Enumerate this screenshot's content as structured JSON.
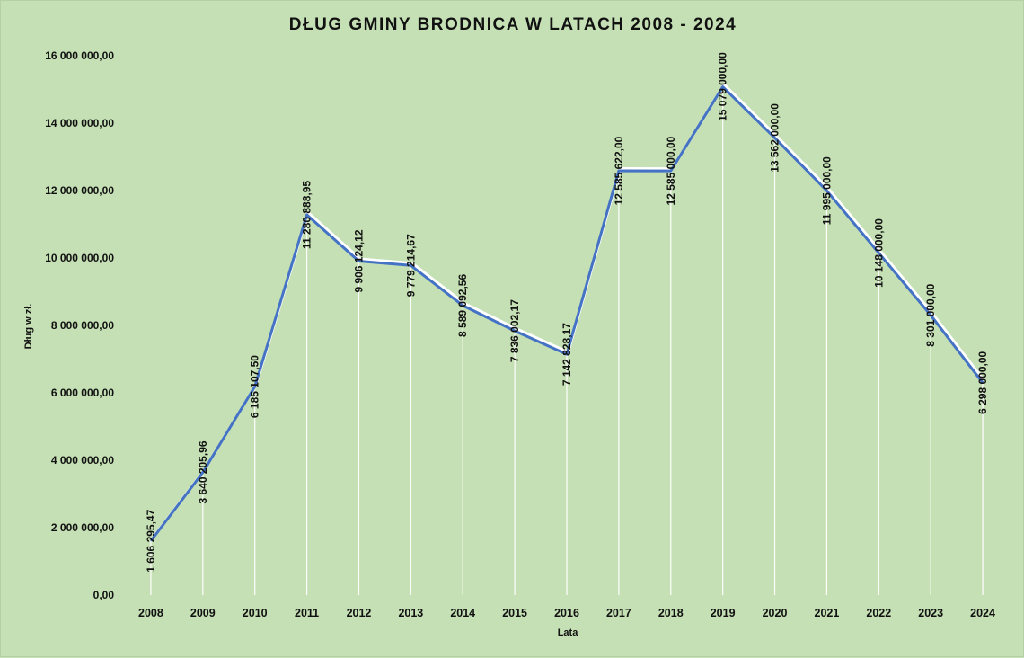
{
  "chart_data": {
    "type": "line",
    "title": "DŁUG GMINY BRODNICA  W LATACH 2008 - 2024",
    "xlabel": "Lata",
    "ylabel": "Dług w zł.",
    "ylim": [
      0,
      16000000
    ],
    "yticks": [
      {
        "value": 0,
        "label": "0,00"
      },
      {
        "value": 2000000,
        "label": "2 000 000,00"
      },
      {
        "value": 4000000,
        "label": "4 000 000,00"
      },
      {
        "value": 6000000,
        "label": "6 000 000,00"
      },
      {
        "value": 8000000,
        "label": "8 000 000,00"
      },
      {
        "value": 10000000,
        "label": "10 000 000,00"
      },
      {
        "value": 12000000,
        "label": "12 000 000,00"
      },
      {
        "value": 14000000,
        "label": "14 000 000,00"
      },
      {
        "value": 16000000,
        "label": "16 000 000,00"
      }
    ],
    "categories": [
      "2008",
      "2009",
      "2010",
      "2011",
      "2012",
      "2013",
      "2014",
      "2015",
      "2016",
      "2017",
      "2018",
      "2019",
      "2020",
      "2021",
      "2022",
      "2023",
      "2024"
    ],
    "values": [
      1606295.47,
      3640205.96,
      6185107.5,
      11280888.95,
      9906124.12,
      9779214.67,
      8589092.56,
      7836002.17,
      7142828.17,
      12585622.0,
      12585000.0,
      15079000.0,
      13562000.0,
      11995000.0,
      10148000.0,
      8301000.0,
      6298000.0
    ],
    "data_labels": [
      "1 606 295,47",
      "3 640 205,96",
      "6 185 107,50",
      "11 280 888,95",
      "9 906 124,12",
      "9 779 214,67",
      "8 589 092,56",
      "7 836 002,17",
      "7 142 828,17",
      "12 585 622,00",
      "12 585 000,00",
      "15 079 000,00",
      "13 562 000,00",
      "11 995 000,00",
      "10 148 000,00",
      "8 301 000,00",
      "6 298 000,00"
    ],
    "line_color": "#4472c4",
    "grid": false,
    "legend": "none"
  }
}
